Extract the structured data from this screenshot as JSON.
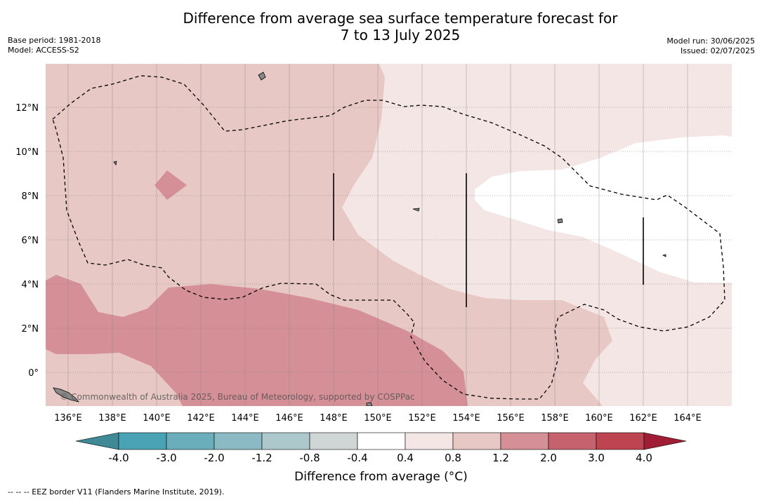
{
  "title": {
    "line1": "Difference from average sea surface temperature forecast for",
    "line2": "7 to 13 July 2025"
  },
  "meta_left": {
    "base_period": "Base period: 1981-2018",
    "model": "Model: ACCESS-S2"
  },
  "meta_right": {
    "model_run": "Model run: 30/06/2025",
    "issued": "Issued: 02/07/2025"
  },
  "map": {
    "longitude_labels": [
      "136°E",
      "138°E",
      "140°E",
      "142°E",
      "144°E",
      "146°E",
      "148°E",
      "150°E",
      "152°E",
      "154°E",
      "156°E",
      "158°E",
      "160°E",
      "162°E",
      "164°E"
    ],
    "latitude_labels": [
      "12°N",
      "10°N",
      "8°N",
      "6°N",
      "4°N",
      "2°N",
      "0°"
    ],
    "attribution": "© Commonwealth of Australia 2025, Bureau of Meteorology, supported by COSPPac",
    "colors": {
      "anom_0_8_1_2": "#e8c8c4",
      "anom_0_4_0_8": "#f4e6e4",
      "anom_neutral": "#ffffff",
      "anom_1_2_2_0": "#d58f96",
      "land": "#888888",
      "eez_line": "#000000"
    }
  },
  "colorbar": {
    "ticks": [
      "-4.0",
      "-3.0",
      "-2.0",
      "-1.2",
      "-0.8",
      "-0.4",
      "0.4",
      "0.8",
      "1.2",
      "2.0",
      "3.0",
      "4.0"
    ],
    "colors": [
      "#3f8a96",
      "#4aa3b5",
      "#6aaebc",
      "#8bbac4",
      "#acc8ca",
      "#d0d6d6",
      "#ffffff",
      "#f4e6e4",
      "#e8c8c4",
      "#d58f96",
      "#c6626e",
      "#bf4452",
      "#a11d35"
    ],
    "label": "Difference from average (°C)"
  },
  "footer": "-- -- -- EEZ border V11 (Flanders Marine Institute, 2019)."
}
